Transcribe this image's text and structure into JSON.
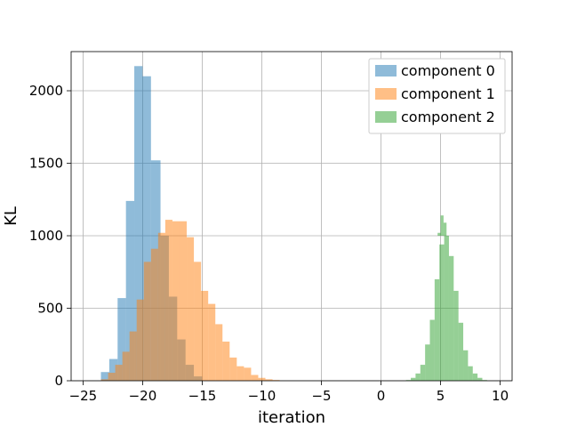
{
  "chart_data": {
    "type": "histogram",
    "title": "",
    "xlabel": "iteration",
    "ylabel": "KL",
    "xlim": [
      -26,
      11
    ],
    "ylim": [
      0,
      2270
    ],
    "xticks": [
      -25,
      -20,
      -15,
      -10,
      -5,
      0,
      5,
      10
    ],
    "yticks": [
      0,
      500,
      1000,
      1500,
      2000
    ],
    "grid": true,
    "legend_position": "top-right",
    "alpha": 0.5,
    "series": [
      {
        "name": "component 0",
        "color": "#1f77b4",
        "bins": [
          [
            -23.5,
            -22.8,
            60
          ],
          [
            -22.8,
            -22.1,
            150
          ],
          [
            -22.1,
            -21.4,
            570
          ],
          [
            -21.4,
            -20.7,
            1240
          ],
          [
            -20.7,
            -20.0,
            2170
          ],
          [
            -20.0,
            -19.3,
            2100
          ],
          [
            -19.3,
            -18.5,
            1520
          ],
          [
            -18.5,
            -17.8,
            1000
          ],
          [
            -17.8,
            -17.1,
            580
          ],
          [
            -17.1,
            -16.4,
            285
          ],
          [
            -16.4,
            -15.7,
            110
          ],
          [
            -15.7,
            -15.0,
            30
          ]
        ]
      },
      {
        "name": "component 1",
        "color": "#ff7f0e",
        "bins": [
          [
            -23.5,
            -22.9,
            10
          ],
          [
            -22.9,
            -22.3,
            55
          ],
          [
            -22.3,
            -21.7,
            110
          ],
          [
            -21.7,
            -21.1,
            200
          ],
          [
            -21.1,
            -20.5,
            340
          ],
          [
            -20.5,
            -19.9,
            560
          ],
          [
            -19.9,
            -19.3,
            820
          ],
          [
            -19.3,
            -18.7,
            910
          ],
          [
            -18.7,
            -18.1,
            1020
          ],
          [
            -18.1,
            -17.5,
            1110
          ],
          [
            -17.5,
            -16.9,
            1100
          ],
          [
            -16.9,
            -16.3,
            1100
          ],
          [
            -16.3,
            -15.7,
            990
          ],
          [
            -15.7,
            -15.1,
            820
          ],
          [
            -15.1,
            -14.5,
            620
          ],
          [
            -14.5,
            -13.9,
            530
          ],
          [
            -13.9,
            -13.3,
            390
          ],
          [
            -13.3,
            -12.7,
            270
          ],
          [
            -12.7,
            -12.1,
            160
          ],
          [
            -12.1,
            -11.5,
            100
          ],
          [
            -11.5,
            -10.9,
            90
          ],
          [
            -10.9,
            -10.3,
            40
          ],
          [
            -10.3,
            -9.7,
            20
          ],
          [
            -9.7,
            -9.1,
            10
          ],
          [
            -9.1,
            -8.5,
            5
          ]
        ]
      },
      {
        "name": "component 2",
        "color": "#2ca02c",
        "bins": [
          [
            2.1,
            2.5,
            5
          ],
          [
            2.5,
            2.9,
            20
          ],
          [
            2.9,
            3.3,
            50
          ],
          [
            3.3,
            3.7,
            110
          ],
          [
            3.7,
            4.1,
            250
          ],
          [
            4.1,
            4.5,
            420
          ],
          [
            4.5,
            4.9,
            700
          ],
          [
            4.9,
            5.3,
            940
          ],
          [
            5.3,
            5.7,
            1000
          ],
          [
            5.7,
            6.1,
            860
          ],
          [
            6.1,
            6.5,
            620
          ],
          [
            6.5,
            6.9,
            400
          ],
          [
            6.9,
            7.3,
            210
          ],
          [
            7.3,
            7.7,
            100
          ],
          [
            7.7,
            8.1,
            50
          ],
          [
            8.1,
            8.5,
            20
          ],
          [
            8.5,
            8.9,
            5
          ]
        ]
      }
    ],
    "overlay_bins": [
      {
        "series": 2,
        "bins": [
          [
            4.75,
            5.0,
            1020
          ],
          [
            5.0,
            5.25,
            1140
          ],
          [
            5.25,
            5.5,
            1090
          ],
          [
            5.5,
            5.75,
            960
          ],
          [
            5.75,
            6.0,
            870
          ],
          [
            6.0,
            6.25,
            760
          ]
        ]
      }
    ]
  }
}
